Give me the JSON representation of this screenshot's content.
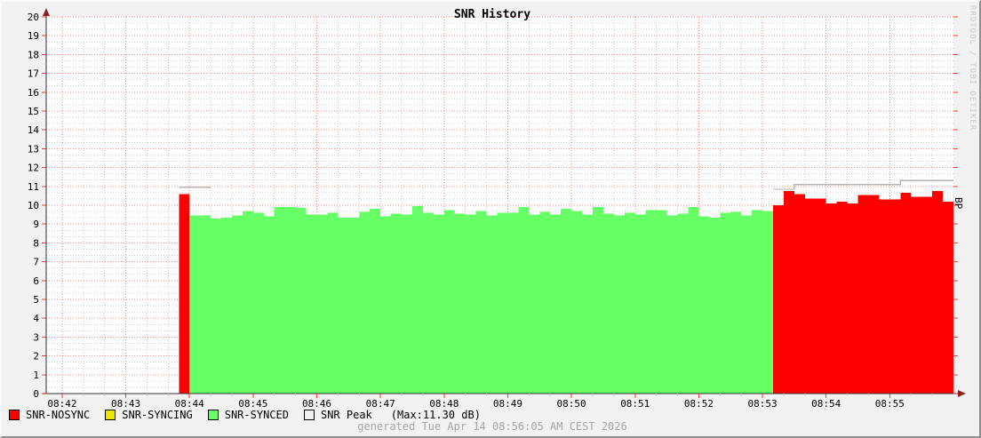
{
  "title": "SNR History",
  "watermark": "RRDTOOL / TOBI OETIKER",
  "right_axis_label": "BP",
  "footer": "generated Tue Apr 14 08:56:05 AM CEST 2026",
  "legend": [
    {
      "label": "SNR-NOSYNC",
      "color": "#ff0000"
    },
    {
      "label": "SNR-SYNCING",
      "color": "#e8e800"
    },
    {
      "label": "SNR-SYNCED",
      "color": "#66ff66"
    },
    {
      "label": "SNR Peak",
      "color": "#f0f0f0",
      "note": "(Max:11.30 dB)"
    }
  ],
  "colors": {
    "canvas": "#ffffff",
    "background": "#f2f2f2",
    "major_grid": "#ff0000",
    "minor_grid": "#cfcfcf",
    "axis": "#333333",
    "arrow": "#8b2323",
    "peak_line": "#b4b4b4",
    "nosync": "#ff0000",
    "syncing": "#e8e800",
    "synced": "#66ff66"
  },
  "chart_data": {
    "type": "area",
    "title": "SNR History",
    "xlabel": "",
    "ylabel": "",
    "right_axis_label": "BP",
    "ylim": [
      0,
      20
    ],
    "yticks": [
      0,
      1,
      2,
      3,
      4,
      5,
      6,
      7,
      8,
      9,
      10,
      11,
      12,
      13,
      14,
      15,
      16,
      17,
      18,
      19,
      20
    ],
    "xticks": [
      "08:42",
      "08:43",
      "08:44",
      "08:45",
      "08:46",
      "08:47",
      "08:48",
      "08:49",
      "08:50",
      "08:51",
      "08:52",
      "08:53",
      "08:54",
      "08:55"
    ],
    "x_start": "08:41:45",
    "x_end": "08:56:00",
    "step_seconds": 10,
    "grid": true,
    "legend_position": "bottom-left",
    "peak_max_db": 11.3,
    "series": [
      {
        "name": "SNR-NOSYNC",
        "color": "#ff0000",
        "draw": "bars",
        "segments": [
          {
            "start": "08:43:50",
            "values": [
              10.6
            ]
          },
          {
            "start": "08:53:10",
            "values": [
              10.0,
              10.75,
              10.6,
              10.35,
              10.35,
              10.1,
              10.2,
              10.1,
              10.55,
              10.55,
              10.3,
              10.3,
              10.65,
              10.45,
              10.45,
              10.75,
              10.2
            ]
          }
        ]
      },
      {
        "name": "SNR-SYNCING",
        "color": "#e8e800",
        "draw": "bars",
        "segments": []
      },
      {
        "name": "SNR-SYNCED",
        "color": "#66ff66",
        "draw": "bars",
        "segments": [
          {
            "start": "08:44:00",
            "values": [
              9.45,
              9.45,
              9.3,
              9.35,
              9.45,
              9.7,
              9.6,
              9.4,
              9.9,
              9.9,
              9.85,
              9.5,
              9.5,
              9.6,
              9.35,
              9.35,
              9.65,
              9.8,
              9.4,
              9.55,
              9.5,
              9.95,
              9.6,
              9.5,
              9.75,
              9.55,
              9.5,
              9.7,
              9.45,
              9.6,
              9.6,
              9.9,
              9.5,
              9.65,
              9.5,
              9.8,
              9.7,
              9.5,
              9.9,
              9.55,
              9.45,
              9.6,
              9.5,
              9.75,
              9.75,
              9.45,
              9.55,
              9.9,
              9.4,
              9.35,
              9.6,
              9.65,
              9.45,
              9.75,
              9.7
            ]
          }
        ]
      },
      {
        "name": "SNR Peak",
        "color": "#b4b4b4",
        "draw": "line",
        "segments": [
          {
            "start": "08:43:50",
            "values": [
              10.95,
              10.95,
              10.95
            ]
          },
          {
            "start": "08:53:10",
            "values": [
              10.85,
              10.85,
              11.1,
              11.1,
              11.1,
              11.1,
              11.1,
              11.1,
              11.1,
              11.1,
              11.1,
              11.1,
              11.3,
              11.3,
              11.3,
              11.3,
              11.3
            ]
          }
        ]
      }
    ]
  }
}
